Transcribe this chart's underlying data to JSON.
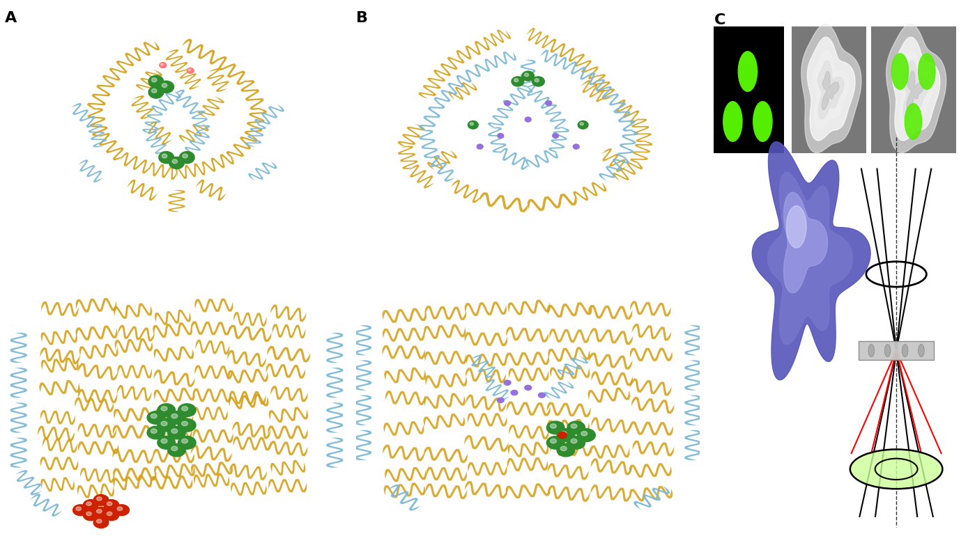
{
  "bg_color": "#ffffff",
  "label_A": "A",
  "label_B": "B",
  "label_C": "C",
  "label_fontsize": 16,
  "label_fontweight": "bold",
  "protein_yellow": "#D4A017",
  "protein_blue": "#7BB8D4",
  "protein_green_dark": "#1A7A1A",
  "protein_green_sphere": "#2E8B2E",
  "protein_red": "#CC2200",
  "protein_purple": "#9370DB",
  "protein_pink": "#FF7777",
  "helix_lw": 1.2,
  "green_dot_color": "#55EE00",
  "stem_black": "#111111",
  "stem_red": "#DD0000",
  "green_disk_fill": "#CCFF99",
  "blue_blob_outer": "#5555CC",
  "blue_blob_inner": "#9999EE",
  "em_gray_bg": "#888888",
  "em_white_blob": "#E8E8E8",
  "sample_gray": "#BBBBBB"
}
